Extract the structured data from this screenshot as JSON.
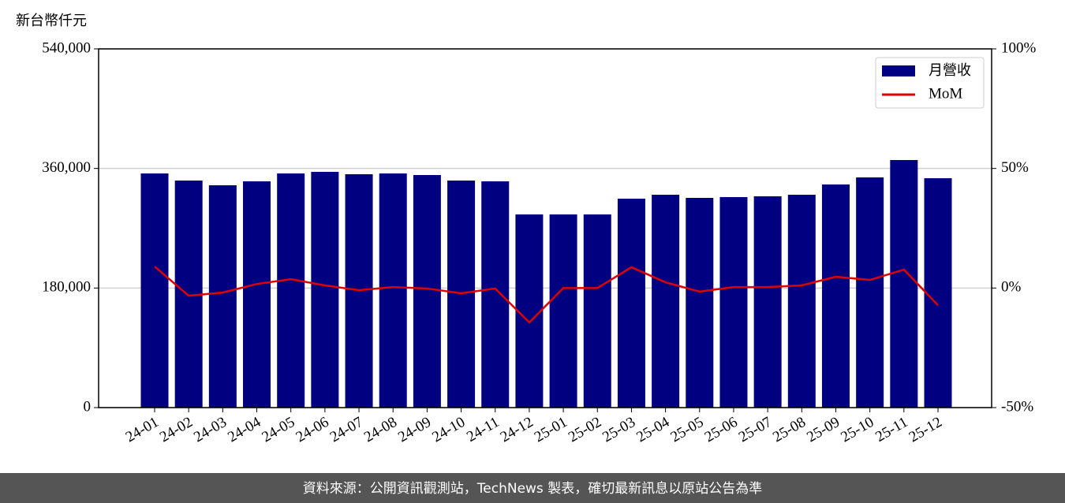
{
  "chart_data": {
    "type": "bar_line",
    "y_label": "新台幣仟元",
    "categories": [
      "24-01",
      "24-02",
      "24-03",
      "24-04",
      "24-05",
      "24-06",
      "24-07",
      "24-08",
      "24-09",
      "24-10",
      "24-11",
      "24-12",
      "25-01",
      "25-02",
      "25-03",
      "25-04",
      "25-05",
      "25-06",
      "25-07",
      "25-08",
      "25-09",
      "25-10",
      "25-11",
      "25-12"
    ],
    "series": [
      {
        "name": "月營收",
        "type": "bar",
        "color": "#000080",
        "values": [
          352500,
          341800,
          334700,
          340600,
          352500,
          354900,
          351300,
          352500,
          350100,
          341800,
          340600,
          290800,
          290800,
          290800,
          314500,
          320400,
          315700,
          316900,
          318100,
          320400,
          335900,
          346500,
          372700,
          345300
        ]
      },
      {
        "name": "MoM",
        "type": "line",
        "axis": "y2",
        "color": "#e00000",
        "values": [
          9.0,
          -3.2,
          -1.9,
          1.7,
          3.7,
          1.1,
          -0.9,
          0.4,
          -0.2,
          -2.2,
          -0.2,
          -14.4,
          0,
          0,
          8.7,
          2.4,
          -1.5,
          0.4,
          0.4,
          1.1,
          4.7,
          3.4,
          7.7,
          -7.2
        ]
      }
    ],
    "ylim": [
      0,
      540000
    ],
    "yticks": [
      {
        "value": 0,
        "label": "0"
      },
      {
        "value": 180000,
        "label": "180,000"
      },
      {
        "value": 360000,
        "label": "360,000"
      },
      {
        "value": 540000,
        "label": "540,000"
      }
    ],
    "y2lim": [
      -50,
      100
    ],
    "y2ticks": [
      {
        "value": -50,
        "label": "-50%"
      },
      {
        "value": 0,
        "label": "0%"
      },
      {
        "value": 50,
        "label": "50%"
      },
      {
        "value": 100,
        "label": "100%"
      }
    ],
    "grid": true,
    "legend": "upper right"
  },
  "footer": "資料來源：公開資訊觀測站，TechNews 製表，確切最新訊息以原站公告為準"
}
